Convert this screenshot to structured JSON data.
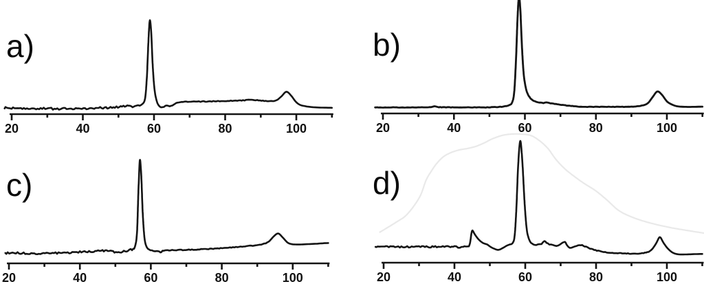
{
  "figure": {
    "background": "#ffffff",
    "line_color": "#141414",
    "axis_color": "#141414",
    "ghost_color": "#e9e9e9",
    "tick_label_color": "#111111"
  },
  "chart_data": [
    {
      "panel": "a)",
      "type": "line",
      "xlabel": "",
      "ylabel": "",
      "xlim": [
        20,
        110
      ],
      "x_major_ticks": [
        20,
        40,
        60,
        80,
        100
      ],
      "x_minor_ticks": [
        30,
        50,
        70,
        90,
        110
      ],
      "x_tick_labels": [
        "20",
        "40",
        "60",
        "80",
        "100"
      ],
      "grid": false,
      "legend": false,
      "peaks": [
        {
          "x": 58.8,
          "rel_intensity": 1.0,
          "note": "sharp main peak"
        },
        {
          "x": 97.2,
          "rel_intensity": 0.24,
          "note": "broad weak peak"
        }
      ],
      "noise_zones": [
        [
          18,
          56.3,
          1.5
        ],
        [
          61.5,
          94,
          0.55
        ]
      ],
      "trace": [
        [
          18,
          0.068
        ],
        [
          20,
          0.068
        ],
        [
          23,
          0.065
        ],
        [
          26,
          0.062
        ],
        [
          29,
          0.06
        ],
        [
          32,
          0.058
        ],
        [
          35,
          0.058
        ],
        [
          38,
          0.058
        ],
        [
          41,
          0.06
        ],
        [
          44,
          0.065
        ],
        [
          46.5,
          0.068
        ],
        [
          49,
          0.075
        ],
        [
          51,
          0.082
        ],
        [
          52.5,
          0.088
        ],
        [
          54,
          0.082
        ],
        [
          55,
          0.085
        ],
        [
          56,
          0.095
        ],
        [
          56.8,
          0.11
        ],
        [
          57.5,
          0.17
        ],
        [
          58,
          0.4
        ],
        [
          58.4,
          0.75
        ],
        [
          58.8,
          1
        ],
        [
          59.2,
          0.88
        ],
        [
          59.6,
          0.55
        ],
        [
          60.1,
          0.28
        ],
        [
          60.7,
          0.15
        ],
        [
          61.3,
          0.095
        ],
        [
          62,
          0.075
        ],
        [
          62.8,
          0.08
        ],
        [
          63.6,
          0.095
        ],
        [
          64.4,
          0.085
        ],
        [
          65.2,
          0.095
        ],
        [
          66.2,
          0.115
        ],
        [
          67.5,
          0.128
        ],
        [
          70,
          0.132
        ],
        [
          74,
          0.135
        ],
        [
          78,
          0.138
        ],
        [
          82,
          0.142
        ],
        [
          85,
          0.148
        ],
        [
          87,
          0.152
        ],
        [
          89,
          0.148
        ],
        [
          91,
          0.142
        ],
        [
          93,
          0.14
        ],
        [
          94.5,
          0.15
        ],
        [
          95.8,
          0.19
        ],
        [
          97.2,
          0.24
        ],
        [
          98.5,
          0.2
        ],
        [
          99.8,
          0.135
        ],
        [
          101,
          0.1
        ],
        [
          102.5,
          0.085
        ],
        [
          104.5,
          0.075
        ],
        [
          107,
          0.07
        ],
        [
          110,
          0.068
        ]
      ]
    },
    {
      "panel": "b)",
      "type": "line",
      "xlabel": "",
      "ylabel": "",
      "xlim": [
        20,
        110
      ],
      "x_major_ticks": [
        20,
        40,
        60,
        80,
        100
      ],
      "x_minor_ticks": [
        30,
        50,
        70,
        90,
        110
      ],
      "x_tick_labels": [
        "20",
        "40",
        "60",
        "80",
        "100"
      ],
      "grid": false,
      "legend": false,
      "peaks": [
        {
          "x": 58.3,
          "rel_intensity": 1.06,
          "note": "sharp main peak, clipped at top edge"
        },
        {
          "x": 97.3,
          "rel_intensity": 0.2,
          "note": "broad weak peak"
        }
      ],
      "noise_zones": [
        [
          17.8,
          56,
          0.35
        ],
        [
          60.5,
          94,
          0.3
        ]
      ],
      "trace": [
        [
          17.8,
          0.055
        ],
        [
          22,
          0.055
        ],
        [
          26,
          0.055
        ],
        [
          30,
          0.055
        ],
        [
          33.5,
          0.058
        ],
        [
          34.5,
          0.065
        ],
        [
          35.5,
          0.058
        ],
        [
          40,
          0.055
        ],
        [
          44,
          0.055
        ],
        [
          48,
          0.055
        ],
        [
          51,
          0.057
        ],
        [
          53,
          0.06
        ],
        [
          54.5,
          0.065
        ],
        [
          55.6,
          0.075
        ],
        [
          56.4,
          0.1
        ],
        [
          57,
          0.2
        ],
        [
          57.5,
          0.5
        ],
        [
          57.9,
          0.85
        ],
        [
          58.3,
          1.06
        ],
        [
          58.7,
          0.95
        ],
        [
          59.1,
          0.65
        ],
        [
          59.6,
          0.38
        ],
        [
          60.2,
          0.24
        ],
        [
          60.9,
          0.17
        ],
        [
          61.8,
          0.13
        ],
        [
          62.8,
          0.11
        ],
        [
          64,
          0.1
        ],
        [
          65.2,
          0.095
        ],
        [
          66,
          0.1
        ],
        [
          66.8,
          0.095
        ],
        [
          68,
          0.088
        ],
        [
          69.5,
          0.082
        ],
        [
          71,
          0.075
        ],
        [
          73,
          0.068
        ],
        [
          75,
          0.063
        ],
        [
          78,
          0.06
        ],
        [
          81,
          0.06
        ],
        [
          84,
          0.06
        ],
        [
          87,
          0.06
        ],
        [
          90,
          0.062
        ],
        [
          92.5,
          0.068
        ],
        [
          94.5,
          0.09
        ],
        [
          96,
          0.15
        ],
        [
          97.3,
          0.2
        ],
        [
          98.6,
          0.17
        ],
        [
          100,
          0.11
        ],
        [
          101.5,
          0.08
        ],
        [
          103,
          0.065
        ],
        [
          105,
          0.06
        ],
        [
          107.5,
          0.06
        ],
        [
          110,
          0.062
        ]
      ]
    },
    {
      "panel": "c)",
      "type": "line",
      "xlabel": "",
      "ylabel": "",
      "xlim": [
        20,
        110
      ],
      "x_major_ticks": [
        20,
        40,
        60,
        80,
        100
      ],
      "x_minor_ticks": [
        30,
        50,
        70,
        90,
        110
      ],
      "x_tick_labels": [
        "20",
        "40",
        "60",
        "80",
        "100"
      ],
      "grid": false,
      "legend": false,
      "peaks": [
        {
          "x": 56.9,
          "rel_intensity": 1.0,
          "note": "sharp main peak"
        },
        {
          "x": 95.9,
          "rel_intensity": 0.29,
          "note": "broad weak peak on rising baseline"
        }
      ],
      "noise_zones": [
        [
          19,
          55.3,
          1.3
        ],
        [
          59.8,
          93,
          0.5
        ]
      ],
      "trace": [
        [
          19,
          0.1
        ],
        [
          22,
          0.1
        ],
        [
          25,
          0.098
        ],
        [
          28,
          0.096
        ],
        [
          31,
          0.096
        ],
        [
          34,
          0.1
        ],
        [
          37,
          0.105
        ],
        [
          40,
          0.11
        ],
        [
          43,
          0.115
        ],
        [
          45.5,
          0.12
        ],
        [
          47.5,
          0.125
        ],
        [
          49,
          0.115
        ],
        [
          50.5,
          0.105
        ],
        [
          52,
          0.115
        ],
        [
          53.5,
          0.125
        ],
        [
          54.7,
          0.135
        ],
        [
          55.5,
          0.16
        ],
        [
          56.1,
          0.3
        ],
        [
          56.5,
          0.7
        ],
        [
          56.9,
          1
        ],
        [
          57.3,
          0.85
        ],
        [
          57.7,
          0.5
        ],
        [
          58.2,
          0.25
        ],
        [
          58.8,
          0.16
        ],
        [
          59.5,
          0.135
        ],
        [
          60.3,
          0.125
        ],
        [
          61.2,
          0.12
        ],
        [
          62.1,
          0.118
        ],
        [
          62.7,
          0.105
        ],
        [
          63.3,
          0.12
        ],
        [
          64.5,
          0.125
        ],
        [
          66,
          0.128
        ],
        [
          69,
          0.13
        ],
        [
          72,
          0.133
        ],
        [
          75,
          0.138
        ],
        [
          78,
          0.143
        ],
        [
          81,
          0.15
        ],
        [
          84,
          0.158
        ],
        [
          87,
          0.167
        ],
        [
          89.5,
          0.175
        ],
        [
          91.5,
          0.185
        ],
        [
          93.2,
          0.21
        ],
        [
          94.6,
          0.26
        ],
        [
          95.9,
          0.29
        ],
        [
          97.2,
          0.25
        ],
        [
          98.6,
          0.2
        ],
        [
          100,
          0.185
        ],
        [
          102,
          0.183
        ],
        [
          104,
          0.186
        ],
        [
          106.5,
          0.19
        ],
        [
          108.5,
          0.195
        ],
        [
          110,
          0.197
        ]
      ]
    },
    {
      "panel": "d)",
      "type": "line",
      "xlabel": "",
      "ylabel": "",
      "xlim": [
        20,
        110
      ],
      "x_major_ticks": [
        20,
        40,
        60,
        80,
        100
      ],
      "x_minor_ticks": [
        30,
        50,
        70,
        90,
        110
      ],
      "x_tick_labels": [
        "20",
        "40",
        "60",
        "80",
        "100"
      ],
      "grid": false,
      "legend": false,
      "peaks": [
        {
          "x": 45.1,
          "rel_intensity": 0.265,
          "note": "small sharp peak"
        },
        {
          "x": 58.6,
          "rel_intensity": 1.0,
          "note": "broad main peak"
        },
        {
          "x": 65.4,
          "rel_intensity": 0.175,
          "note": "minor bump"
        },
        {
          "x": 71.2,
          "rel_intensity": 0.17,
          "note": "minor bump"
        },
        {
          "x": 98,
          "rel_intensity": 0.21,
          "note": "broad weak peak"
        }
      ],
      "noise_zones": [
        [
          17.7,
          43.8,
          1.2
        ],
        [
          61.5,
          95,
          0.5
        ]
      ],
      "trace": [
        [
          17.7,
          0.13
        ],
        [
          20,
          0.13
        ],
        [
          25,
          0.13
        ],
        [
          30,
          0.13
        ],
        [
          35,
          0.13
        ],
        [
          40,
          0.13
        ],
        [
          43.5,
          0.13
        ],
        [
          44.3,
          0.15
        ],
        [
          44.8,
          0.24
        ],
        [
          45.1,
          0.265
        ],
        [
          45.6,
          0.24
        ],
        [
          46.3,
          0.21
        ],
        [
          47.2,
          0.18
        ],
        [
          48.2,
          0.16
        ],
        [
          49.2,
          0.15
        ],
        [
          50.2,
          0.13
        ],
        [
          51.2,
          0.115
        ],
        [
          52.4,
          0.105
        ],
        [
          53.6,
          0.12
        ],
        [
          54.8,
          0.14
        ],
        [
          55.7,
          0.15
        ],
        [
          56.4,
          0.16
        ],
        [
          57,
          0.22
        ],
        [
          57.5,
          0.45
        ],
        [
          58,
          0.8
        ],
        [
          58.6,
          1
        ],
        [
          59.2,
          0.82
        ],
        [
          59.8,
          0.5
        ],
        [
          60.4,
          0.28
        ],
        [
          61.1,
          0.19
        ],
        [
          61.9,
          0.155
        ],
        [
          62.7,
          0.145
        ],
        [
          63.6,
          0.15
        ],
        [
          64.6,
          0.155
        ],
        [
          65.4,
          0.175
        ],
        [
          66,
          0.165
        ],
        [
          66.8,
          0.15
        ],
        [
          67.8,
          0.145
        ],
        [
          68.8,
          0.14
        ],
        [
          69.8,
          0.15
        ],
        [
          70.6,
          0.165
        ],
        [
          71.2,
          0.17
        ],
        [
          71.9,
          0.14
        ],
        [
          72.6,
          0.12
        ],
        [
          73.5,
          0.13
        ],
        [
          74.5,
          0.14
        ],
        [
          75.7,
          0.145
        ],
        [
          76.8,
          0.135
        ],
        [
          78,
          0.12
        ],
        [
          79.5,
          0.105
        ],
        [
          81,
          0.095
        ],
        [
          83,
          0.085
        ],
        [
          85,
          0.08
        ],
        [
          87,
          0.078
        ],
        [
          89,
          0.075
        ],
        [
          91,
          0.075
        ],
        [
          93,
          0.078
        ],
        [
          94.5,
          0.085
        ],
        [
          95.8,
          0.11
        ],
        [
          97,
          0.16
        ],
        [
          98,
          0.21
        ],
        [
          99,
          0.165
        ],
        [
          100.3,
          0.115
        ],
        [
          101.8,
          0.08
        ],
        [
          103.5,
          0.068
        ],
        [
          105.5,
          0.068
        ],
        [
          107.5,
          0.07
        ],
        [
          110,
          0.072
        ]
      ],
      "ghost_trace": [
        [
          18.8,
          0.235
        ],
        [
          21.4,
          0.278
        ],
        [
          23.9,
          0.321
        ],
        [
          26.2,
          0.364
        ],
        [
          28.5,
          0.439
        ],
        [
          30.5,
          0.529
        ],
        [
          32,
          0.642
        ],
        [
          33.6,
          0.717
        ],
        [
          35.1,
          0.775
        ],
        [
          36.9,
          0.824
        ],
        [
          39,
          0.856
        ],
        [
          41.4,
          0.877
        ],
        [
          43.7,
          0.888
        ],
        [
          46,
          0.904
        ],
        [
          48.3,
          0.93
        ],
        [
          50.7,
          0.963
        ],
        [
          53.4,
          0.989
        ],
        [
          56.1,
          1
        ],
        [
          58.8,
          1
        ],
        [
          61.6,
          0.989
        ],
        [
          64.1,
          0.947
        ],
        [
          66.4,
          0.888
        ],
        [
          68.7,
          0.802
        ],
        [
          71.3,
          0.727
        ],
        [
          74,
          0.668
        ],
        [
          76.7,
          0.615
        ],
        [
          79.8,
          0.561
        ],
        [
          82.9,
          0.492
        ],
        [
          86.4,
          0.406
        ],
        [
          90.3,
          0.353
        ],
        [
          95.1,
          0.31
        ],
        [
          101,
          0.273
        ],
        [
          106.8,
          0.246
        ],
        [
          110.5,
          0.23
        ]
      ]
    }
  ]
}
